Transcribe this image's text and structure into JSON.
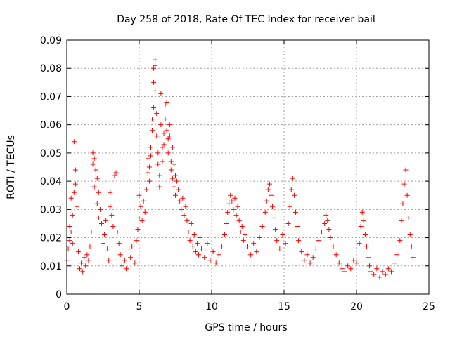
{
  "chart_data": {
    "type": "scatter",
    "title": "Day 258 of 2018, Rate Of TEC Index for receiver bail",
    "xlabel": "GPS time / hours",
    "ylabel": "ROTI / TECUs",
    "xlim": [
      0,
      25
    ],
    "ylim": [
      0,
      0.09
    ],
    "xticks": [
      0,
      5,
      10,
      15,
      20,
      25
    ],
    "xtick_labels": [
      "0",
      "5",
      "10",
      "15",
      "20",
      "25"
    ],
    "yticks": [
      0,
      0.01,
      0.02,
      0.03,
      0.04,
      0.05,
      0.06,
      0.07,
      0.08,
      0.09
    ],
    "ytick_labels": [
      "0",
      "0.01",
      "0.02",
      "0.03",
      "0.04",
      "0.05",
      "0.06",
      "0.07",
      "0.08",
      "0.09"
    ],
    "grid": true,
    "marker": "+",
    "marker_color": "#ff0000",
    "series": [
      {
        "name": "ROTI",
        "points": [
          [
            0.0,
            0.012
          ],
          [
            0.1,
            0.016
          ],
          [
            0.2,
            0.019
          ],
          [
            0.2,
            0.024
          ],
          [
            0.3,
            0.034
          ],
          [
            0.3,
            0.022
          ],
          [
            0.4,
            0.028
          ],
          [
            0.4,
            0.018
          ],
          [
            0.5,
            0.036
          ],
          [
            0.5,
            0.054
          ],
          [
            0.6,
            0.044
          ],
          [
            0.6,
            0.039
          ],
          [
            0.7,
            0.031
          ],
          [
            0.8,
            0.015
          ],
          [
            0.9,
            0.009
          ],
          [
            1.0,
            0.011
          ],
          [
            1.1,
            0.008
          ],
          [
            1.2,
            0.013
          ],
          [
            1.3,
            0.01
          ],
          [
            1.4,
            0.014
          ],
          [
            1.5,
            0.012
          ],
          [
            1.6,
            0.017
          ],
          [
            1.7,
            0.022
          ],
          [
            1.8,
            0.05
          ],
          [
            1.8,
            0.046
          ],
          [
            1.9,
            0.048
          ],
          [
            1.9,
            0.038
          ],
          [
            2.0,
            0.044
          ],
          [
            2.1,
            0.041
          ],
          [
            2.1,
            0.032
          ],
          [
            2.2,
            0.036
          ],
          [
            2.2,
            0.027
          ],
          [
            2.3,
            0.03
          ],
          [
            2.4,
            0.025
          ],
          [
            2.5,
            0.018
          ],
          [
            2.6,
            0.021
          ],
          [
            2.7,
            0.026
          ],
          [
            2.8,
            0.016
          ],
          [
            2.9,
            0.012
          ],
          [
            3.0,
            0.036
          ],
          [
            3.0,
            0.031
          ],
          [
            3.1,
            0.028
          ],
          [
            3.2,
            0.024
          ],
          [
            3.3,
            0.042
          ],
          [
            3.4,
            0.043
          ],
          [
            3.5,
            0.022
          ],
          [
            3.6,
            0.018
          ],
          [
            3.7,
            0.014
          ],
          [
            3.8,
            0.01
          ],
          [
            4.0,
            0.012
          ],
          [
            4.1,
            0.009
          ],
          [
            4.3,
            0.016
          ],
          [
            4.4,
            0.013
          ],
          [
            4.5,
            0.017
          ],
          [
            4.7,
            0.011
          ],
          [
            4.8,
            0.019
          ],
          [
            4.9,
            0.023
          ],
          [
            5.0,
            0.027
          ],
          [
            5.0,
            0.035
          ],
          [
            5.1,
            0.031
          ],
          [
            5.2,
            0.026
          ],
          [
            5.3,
            0.033
          ],
          [
            5.4,
            0.029
          ],
          [
            5.5,
            0.037
          ],
          [
            5.6,
            0.043
          ],
          [
            5.6,
            0.048
          ],
          [
            5.7,
            0.045
          ],
          [
            5.7,
            0.04
          ],
          [
            5.8,
            0.052
          ],
          [
            5.8,
            0.049
          ],
          [
            5.9,
            0.058
          ],
          [
            5.9,
            0.062
          ],
          [
            6.0,
            0.066
          ],
          [
            6.0,
            0.075
          ],
          [
            6.0,
            0.08
          ],
          [
            6.1,
            0.083
          ],
          [
            6.1,
            0.081
          ],
          [
            6.1,
            0.072
          ],
          [
            6.2,
            0.064
          ],
          [
            6.2,
            0.056
          ],
          [
            6.3,
            0.05
          ],
          [
            6.3,
            0.046
          ],
          [
            6.4,
            0.042
          ],
          [
            6.4,
            0.038
          ],
          [
            6.5,
            0.071
          ],
          [
            6.5,
            0.06
          ],
          [
            6.6,
            0.052
          ],
          [
            6.6,
            0.047
          ],
          [
            6.7,
            0.057
          ],
          [
            6.7,
            0.053
          ],
          [
            6.8,
            0.067
          ],
          [
            6.8,
            0.062
          ],
          [
            6.9,
            0.068
          ],
          [
            6.9,
            0.058
          ],
          [
            7.0,
            0.055
          ],
          [
            7.0,
            0.05
          ],
          [
            7.1,
            0.06
          ],
          [
            7.1,
            0.056
          ],
          [
            7.2,
            0.047
          ],
          [
            7.2,
            0.044
          ],
          [
            7.3,
            0.052
          ],
          [
            7.3,
            0.041
          ],
          [
            7.4,
            0.046
          ],
          [
            7.4,
            0.038
          ],
          [
            7.5,
            0.042
          ],
          [
            7.5,
            0.035
          ],
          [
            7.6,
            0.04
          ],
          [
            7.7,
            0.037
          ],
          [
            7.8,
            0.033
          ],
          [
            7.9,
            0.03
          ],
          [
            8.0,
            0.034
          ],
          [
            8.1,
            0.028
          ],
          [
            8.2,
            0.031
          ],
          [
            8.3,
            0.026
          ],
          [
            8.4,
            0.022
          ],
          [
            8.5,
            0.019
          ],
          [
            8.6,
            0.025
          ],
          [
            8.7,
            0.017
          ],
          [
            8.8,
            0.021
          ],
          [
            8.9,
            0.015
          ],
          [
            9.0,
            0.018
          ],
          [
            9.1,
            0.014
          ],
          [
            9.2,
            0.02
          ],
          [
            9.3,
            0.016
          ],
          [
            9.5,
            0.013
          ],
          [
            9.7,
            0.018
          ],
          [
            9.9,
            0.012
          ],
          [
            10.1,
            0.015
          ],
          [
            10.3,
            0.011
          ],
          [
            10.5,
            0.014
          ],
          [
            10.7,
            0.017
          ],
          [
            10.9,
            0.021
          ],
          [
            11.0,
            0.025
          ],
          [
            11.1,
            0.029
          ],
          [
            11.2,
            0.032
          ],
          [
            11.3,
            0.035
          ],
          [
            11.4,
            0.033
          ],
          [
            11.5,
            0.03
          ],
          [
            11.6,
            0.034
          ],
          [
            11.7,
            0.028
          ],
          [
            11.8,
            0.031
          ],
          [
            11.9,
            0.026
          ],
          [
            12.0,
            0.022
          ],
          [
            12.1,
            0.024
          ],
          [
            12.2,
            0.019
          ],
          [
            12.3,
            0.021
          ],
          [
            12.5,
            0.017
          ],
          [
            12.7,
            0.014
          ],
          [
            12.9,
            0.018
          ],
          [
            13.1,
            0.015
          ],
          [
            13.3,
            0.02
          ],
          [
            13.5,
            0.024
          ],
          [
            13.7,
            0.029
          ],
          [
            13.8,
            0.033
          ],
          [
            13.9,
            0.037
          ],
          [
            14.0,
            0.039
          ],
          [
            14.1,
            0.035
          ],
          [
            14.2,
            0.031
          ],
          [
            14.3,
            0.027
          ],
          [
            14.4,
            0.023
          ],
          [
            14.5,
            0.019
          ],
          [
            14.7,
            0.016
          ],
          [
            14.9,
            0.021
          ],
          [
            15.1,
            0.018
          ],
          [
            15.3,
            0.025
          ],
          [
            15.4,
            0.031
          ],
          [
            15.5,
            0.037
          ],
          [
            15.6,
            0.041
          ],
          [
            15.7,
            0.035
          ],
          [
            15.8,
            0.029
          ],
          [
            15.9,
            0.024
          ],
          [
            16.0,
            0.019
          ],
          [
            16.2,
            0.015
          ],
          [
            16.4,
            0.012
          ],
          [
            16.6,
            0.014
          ],
          [
            16.8,
            0.011
          ],
          [
            17.0,
            0.013
          ],
          [
            17.2,
            0.016
          ],
          [
            17.4,
            0.019
          ],
          [
            17.6,
            0.022
          ],
          [
            17.8,
            0.025
          ],
          [
            17.9,
            0.028
          ],
          [
            18.0,
            0.026
          ],
          [
            18.1,
            0.023
          ],
          [
            18.2,
            0.02
          ],
          [
            18.4,
            0.017
          ],
          [
            18.6,
            0.014
          ],
          [
            18.8,
            0.011
          ],
          [
            19.0,
            0.009
          ],
          [
            19.2,
            0.008
          ],
          [
            19.4,
            0.01
          ],
          [
            19.6,
            0.009
          ],
          [
            19.8,
            0.012
          ],
          [
            20.0,
            0.011
          ],
          [
            20.2,
            0.018
          ],
          [
            20.3,
            0.024
          ],
          [
            20.4,
            0.029
          ],
          [
            20.5,
            0.026
          ],
          [
            20.6,
            0.021
          ],
          [
            20.7,
            0.017
          ],
          [
            20.8,
            0.013
          ],
          [
            20.9,
            0.01
          ],
          [
            21.0,
            0.008
          ],
          [
            21.2,
            0.007
          ],
          [
            21.4,
            0.009
          ],
          [
            21.6,
            0.006
          ],
          [
            21.8,
            0.008
          ],
          [
            22.0,
            0.007
          ],
          [
            22.2,
            0.009
          ],
          [
            22.4,
            0.008
          ],
          [
            22.6,
            0.011
          ],
          [
            22.8,
            0.014
          ],
          [
            23.0,
            0.019
          ],
          [
            23.1,
            0.026
          ],
          [
            23.2,
            0.032
          ],
          [
            23.3,
            0.039
          ],
          [
            23.4,
            0.044
          ],
          [
            23.5,
            0.035
          ],
          [
            23.6,
            0.027
          ],
          [
            23.7,
            0.021
          ],
          [
            23.8,
            0.017
          ],
          [
            23.9,
            0.013
          ]
        ]
      }
    ]
  }
}
